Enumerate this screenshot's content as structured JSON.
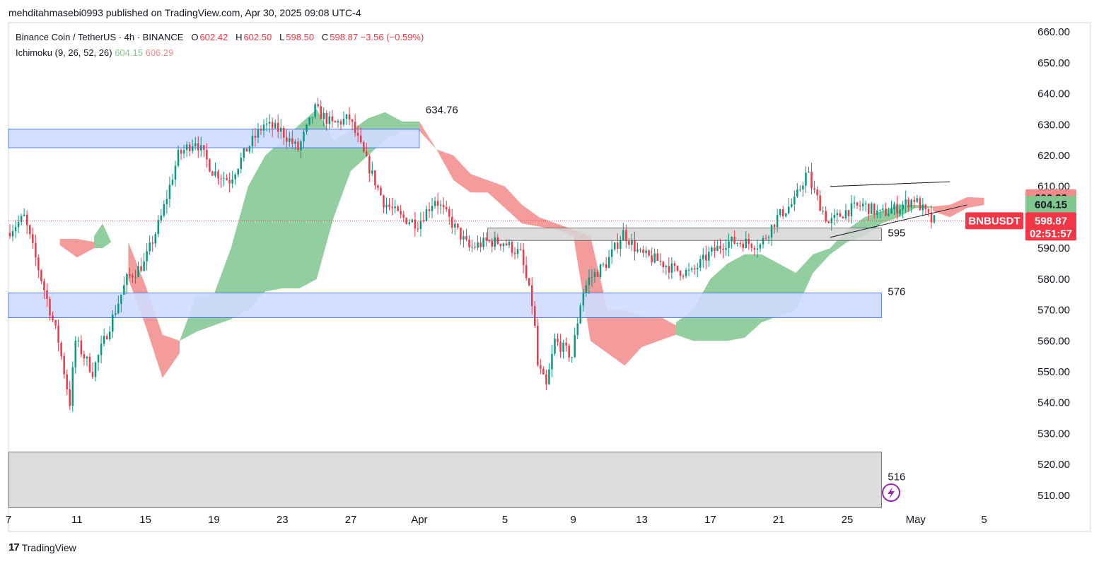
{
  "header": {
    "published": "mehditahmasebi0993 published on TradingView.com, Apr 30, 2025 09:08 UTC-4"
  },
  "legend": {
    "symbol": "Binance Coin / TetherUS · 4h · BINANCE",
    "open_label": "O",
    "open": "602.42",
    "high_label": "H",
    "high": "602.50",
    "low_label": "L",
    "low": "598.50",
    "close_label": "C",
    "close": "598.87",
    "change": "−3.56 (−0.59%)",
    "indicator": "Ichimoku (9, 26, 52, 26)",
    "ind_val1": "604.15",
    "ind_val2": "606.29"
  },
  "footer": {
    "brand": "TradingView",
    "logo_text": "17"
  },
  "colors": {
    "up": "#089981",
    "down": "#f23645",
    "cloud_bull": "#7fc68f",
    "cloud_bear": "#f28a8a",
    "zone_blue": "#cfdcff",
    "zone_gray": "#d6d6d6"
  },
  "chart_data": {
    "type": "candlestick",
    "ylim": [
      507,
      663
    ],
    "x_range": [
      "2025-03-07",
      "2025-05-05"
    ],
    "y_ticks": [
      "510.00",
      "520.00",
      "530.00",
      "540.00",
      "550.00",
      "560.00",
      "570.00",
      "580.00",
      "590.00",
      "600.00",
      "610.00",
      "620.00",
      "630.00",
      "640.00",
      "650.00",
      "660.00"
    ],
    "x_ticks": [
      {
        "label": "7",
        "date": "2025-03-07"
      },
      {
        "label": "11",
        "date": "2025-03-11"
      },
      {
        "label": "15",
        "date": "2025-03-15"
      },
      {
        "label": "19",
        "date": "2025-03-19"
      },
      {
        "label": "23",
        "date": "2025-03-23"
      },
      {
        "label": "27",
        "date": "2025-03-27"
      },
      {
        "label": "Apr",
        "date": "2025-03-31"
      },
      {
        "label": "5",
        "date": "2025-04-05"
      },
      {
        "label": "9",
        "date": "2025-04-09"
      },
      {
        "label": "13",
        "date": "2025-04-13"
      },
      {
        "label": "17",
        "date": "2025-04-17"
      },
      {
        "label": "21",
        "date": "2025-04-21"
      },
      {
        "label": "25",
        "date": "2025-04-25"
      },
      {
        "label": "May",
        "date": "2025-04-29"
      },
      {
        "label": "5",
        "date": "2025-05-03"
      }
    ],
    "price_path": [
      [
        "2025-03-07",
        595
      ],
      [
        "2025-03-08",
        600
      ],
      [
        "2025-03-09",
        580
      ],
      [
        "2025-03-10",
        560
      ],
      [
        "2025-03-10T16",
        540
      ],
      [
        "2025-03-11",
        560
      ],
      [
        "2025-03-12",
        550
      ],
      [
        "2025-03-13",
        565
      ],
      [
        "2025-03-14",
        580
      ],
      [
        "2025-03-15",
        585
      ],
      [
        "2025-03-16",
        600
      ],
      [
        "2025-03-17",
        620
      ],
      [
        "2025-03-18",
        625
      ],
      [
        "2025-03-19",
        615
      ],
      [
        "2025-03-20",
        612
      ],
      [
        "2025-03-21",
        622
      ],
      [
        "2025-03-22",
        630
      ],
      [
        "2025-03-23",
        628
      ],
      [
        "2025-03-24",
        622
      ],
      [
        "2025-03-25",
        635
      ],
      [
        "2025-03-26",
        630
      ],
      [
        "2025-03-27",
        632
      ],
      [
        "2025-03-28",
        618
      ],
      [
        "2025-03-29",
        605
      ],
      [
        "2025-03-30",
        600
      ],
      [
        "2025-03-31",
        598
      ],
      [
        "2025-04-01",
        606
      ],
      [
        "2025-04-02",
        598
      ],
      [
        "2025-04-03",
        590
      ],
      [
        "2025-04-04",
        592
      ],
      [
        "2025-04-05",
        592
      ],
      [
        "2025-04-06",
        588
      ],
      [
        "2025-04-06T18",
        570
      ],
      [
        "2025-04-07",
        552
      ],
      [
        "2025-04-07T12",
        545
      ],
      [
        "2025-04-08",
        560
      ],
      [
        "2025-04-09",
        555
      ],
      [
        "2025-04-09T14",
        575
      ],
      [
        "2025-04-10",
        580
      ],
      [
        "2025-04-11",
        585
      ],
      [
        "2025-04-12",
        595
      ],
      [
        "2025-04-13",
        588
      ],
      [
        "2025-04-14",
        586
      ],
      [
        "2025-04-15",
        583
      ],
      [
        "2025-04-16",
        582
      ],
      [
        "2025-04-17",
        588
      ],
      [
        "2025-04-18",
        592
      ],
      [
        "2025-04-19",
        592
      ],
      [
        "2025-04-20",
        591
      ],
      [
        "2025-04-21",
        600
      ],
      [
        "2025-04-22",
        605
      ],
      [
        "2025-04-22T18",
        615
      ],
      [
        "2025-04-23",
        610
      ],
      [
        "2025-04-24",
        598
      ],
      [
        "2025-04-25",
        602
      ],
      [
        "2025-04-26",
        604
      ],
      [
        "2025-04-27",
        601
      ],
      [
        "2025-04-28",
        603
      ],
      [
        "2025-04-29",
        606
      ],
      [
        "2025-04-30",
        598.87
      ]
    ],
    "cloud": [
      {
        "trend": "bear",
        "points": [
          [
            "2025-03-10",
            593,
            591
          ],
          [
            "2025-03-11",
            593,
            587
          ],
          [
            "2025-03-12",
            592,
            590
          ]
        ]
      },
      {
        "trend": "bull",
        "points": [
          [
            "2025-03-12",
            590,
            594
          ],
          [
            "2025-03-12T12",
            590,
            598
          ],
          [
            "2025-03-13",
            592,
            592
          ]
        ]
      },
      {
        "trend": "bear",
        "points": [
          [
            "2025-03-14",
            592,
            580
          ],
          [
            "2025-03-15",
            578,
            565
          ],
          [
            "2025-03-16",
            562,
            548
          ],
          [
            "2025-03-17",
            560,
            556
          ]
        ]
      },
      {
        "trend": "bull",
        "points": [
          [
            "2025-03-17",
            560,
            560
          ],
          [
            "2025-03-18",
            563,
            575
          ],
          [
            "2025-03-19",
            565,
            575
          ],
          [
            "2025-03-20",
            567,
            590
          ],
          [
            "2025-03-21",
            570,
            610
          ],
          [
            "2025-03-22",
            576,
            620
          ],
          [
            "2025-03-23",
            577,
            625
          ],
          [
            "2025-03-24",
            577,
            630
          ],
          [
            "2025-03-25",
            580,
            635
          ],
          [
            "2025-03-26",
            600,
            625
          ],
          [
            "2025-03-27",
            615,
            628
          ],
          [
            "2025-03-28",
            620,
            632
          ],
          [
            "2025-03-29",
            625,
            634
          ],
          [
            "2025-03-30",
            628,
            631
          ],
          [
            "2025-03-31",
            628,
            631
          ]
        ]
      },
      {
        "trend": "bear",
        "points": [
          [
            "2025-03-31",
            631,
            628
          ],
          [
            "2025-04-01",
            622,
            622
          ],
          [
            "2025-04-02",
            620,
            612
          ],
          [
            "2025-04-03",
            614,
            608
          ],
          [
            "2025-04-04",
            612,
            608
          ],
          [
            "2025-04-05",
            610,
            603
          ],
          [
            "2025-04-06",
            604,
            598
          ],
          [
            "2025-04-07",
            600,
            597
          ],
          [
            "2025-04-08",
            598,
            596
          ],
          [
            "2025-04-09",
            596,
            594
          ],
          [
            "2025-04-10",
            594,
            560
          ],
          [
            "2025-04-11",
            570,
            556
          ],
          [
            "2025-04-12",
            570,
            552
          ],
          [
            "2025-04-13",
            568,
            558
          ],
          [
            "2025-04-14",
            568,
            560
          ],
          [
            "2025-04-15",
            565,
            562
          ]
        ]
      },
      {
        "trend": "bull",
        "points": [
          [
            "2025-04-15",
            562,
            566
          ],
          [
            "2025-04-16",
            560,
            570
          ],
          [
            "2025-04-17",
            560,
            580
          ],
          [
            "2025-04-18",
            560,
            585
          ],
          [
            "2025-04-19",
            561,
            588
          ],
          [
            "2025-04-20",
            566,
            588
          ],
          [
            "2025-04-21",
            568,
            585
          ],
          [
            "2025-04-22",
            570,
            582
          ],
          [
            "2025-04-23",
            582,
            588
          ],
          [
            "2025-04-24",
            588,
            590
          ],
          [
            "2025-04-25",
            592,
            596
          ],
          [
            "2025-04-26",
            594,
            600
          ],
          [
            "2025-04-27",
            598,
            602
          ],
          [
            "2025-04-28",
            600,
            604
          ],
          [
            "2025-04-29",
            603,
            604
          ],
          [
            "2025-04-30",
            603,
            603.5
          ]
        ]
      },
      {
        "trend": "bear",
        "points": [
          [
            "2025-04-30",
            603.5,
            602
          ],
          [
            "2025-05-01",
            604,
            600
          ],
          [
            "2025-05-02",
            606.5,
            603
          ],
          [
            "2025-05-03",
            606.3,
            604
          ]
        ]
      }
    ],
    "zones": [
      {
        "type": "blue",
        "from": "2025-03-07",
        "to": "2025-03-31",
        "top": 628.5,
        "bottom": 622.5,
        "label": "634.76",
        "label_price": 634.76
      },
      {
        "type": "blue",
        "from": "2025-03-07",
        "to": "2025-04-27",
        "top": 575.5,
        "bottom": 567.5,
        "label": "576",
        "label_price": 576
      },
      {
        "type": "gray",
        "from": "2025-04-04",
        "to": "2025-04-27",
        "top": 596.5,
        "bottom": 592.5,
        "label": "595",
        "label_price": 595
      },
      {
        "type": "gray",
        "from": "2025-03-07",
        "to": "2025-04-27",
        "top": 524,
        "bottom": 506,
        "label": "516",
        "label_price": 516
      }
    ],
    "trendlines": [
      {
        "from": [
          "2025-04-24",
          610
        ],
        "to": [
          "2025-05-01",
          611.5
        ]
      },
      {
        "from": [
          "2025-04-24",
          593.5
        ],
        "to": [
          "2025-05-02",
          604
        ]
      }
    ],
    "price_badges": [
      {
        "value": "606.29",
        "price": 606.29,
        "bg": "#f28a8a",
        "fg": "#131722"
      },
      {
        "value": "604.15",
        "price": 604.15,
        "bg": "#7fc68f",
        "fg": "#131722"
      },
      {
        "value": "598.87",
        "sub": "02:51:57",
        "price": 598.87,
        "bg": "#f23645",
        "fg": "#ffffff"
      }
    ],
    "symbol_badge": "BNBUSDT",
    "last_price": 598.87
  }
}
